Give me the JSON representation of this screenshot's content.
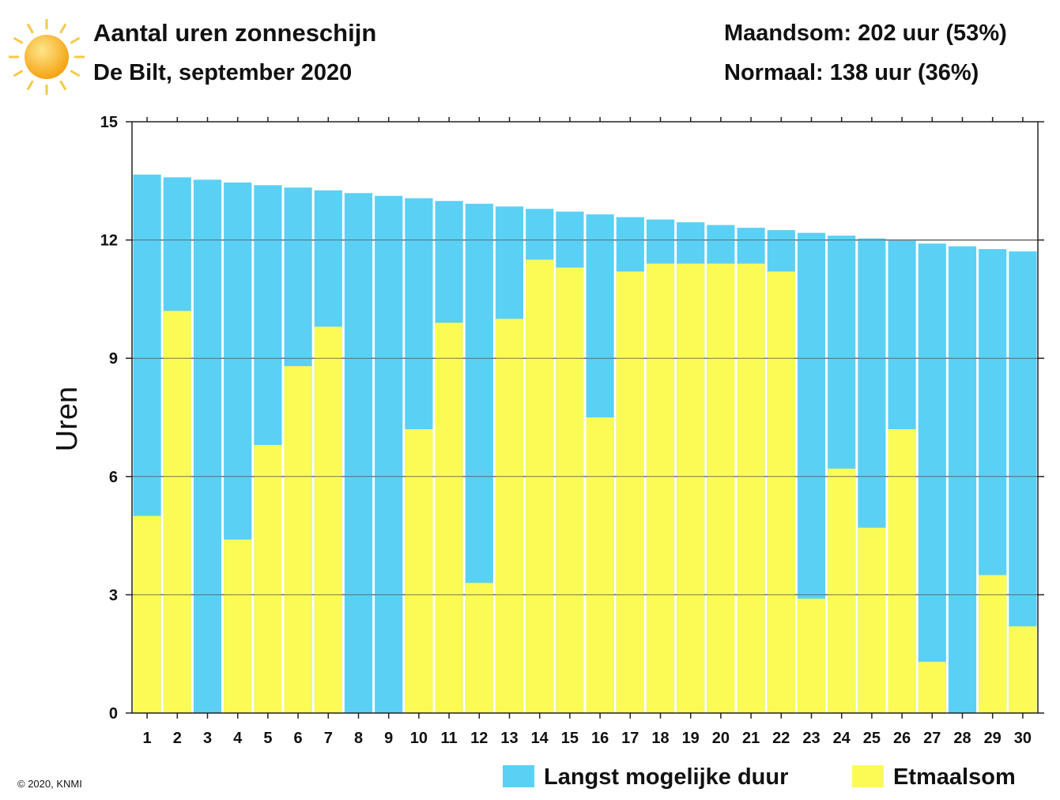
{
  "header": {
    "title": "Aantal uren zonneschijn",
    "subtitle": "De Bilt, september 2020",
    "month_sum": "Maandsom: 202 uur (53%)",
    "normal": "Normaal: 138 uur (36%)",
    "icon": "sun-icon"
  },
  "copyright": "© 2020, KNMI",
  "chart_data": {
    "type": "bar",
    "title": "Aantal uren zonneschijn",
    "ylabel": "Uren",
    "xlabel": "",
    "ylim": [
      0,
      15
    ],
    "yticks": [
      0,
      3,
      6,
      9,
      12,
      15
    ],
    "grid": true,
    "legend_placement": "bottom-right",
    "categories": [
      "1",
      "2",
      "3",
      "4",
      "5",
      "6",
      "7",
      "8",
      "9",
      "10",
      "11",
      "12",
      "13",
      "14",
      "15",
      "16",
      "17",
      "18",
      "19",
      "20",
      "21",
      "22",
      "23",
      "24",
      "25",
      "26",
      "27",
      "28",
      "29",
      "30"
    ],
    "series": [
      {
        "name": "Langst mogelijke duur",
        "color": "#5bd0f5",
        "values": [
          13.66,
          13.59,
          13.53,
          13.46,
          13.39,
          13.33,
          13.26,
          13.19,
          13.12,
          13.06,
          12.99,
          12.92,
          12.85,
          12.79,
          12.72,
          12.65,
          12.58,
          12.52,
          12.45,
          12.38,
          12.31,
          12.25,
          12.18,
          12.11,
          12.04,
          11.98,
          11.91,
          11.84,
          11.77,
          11.71
        ]
      },
      {
        "name": "Etmaalsom",
        "color": "#fbfb56",
        "values": [
          5.0,
          10.2,
          0,
          4.4,
          6.8,
          8.8,
          9.8,
          0,
          0,
          7.2,
          9.9,
          3.3,
          10.0,
          11.5,
          11.3,
          7.5,
          11.2,
          11.4,
          11.4,
          11.4,
          11.4,
          11.2,
          2.9,
          6.2,
          4.7,
          7.2,
          1.3,
          0,
          3.5,
          2.2
        ]
      }
    ]
  }
}
